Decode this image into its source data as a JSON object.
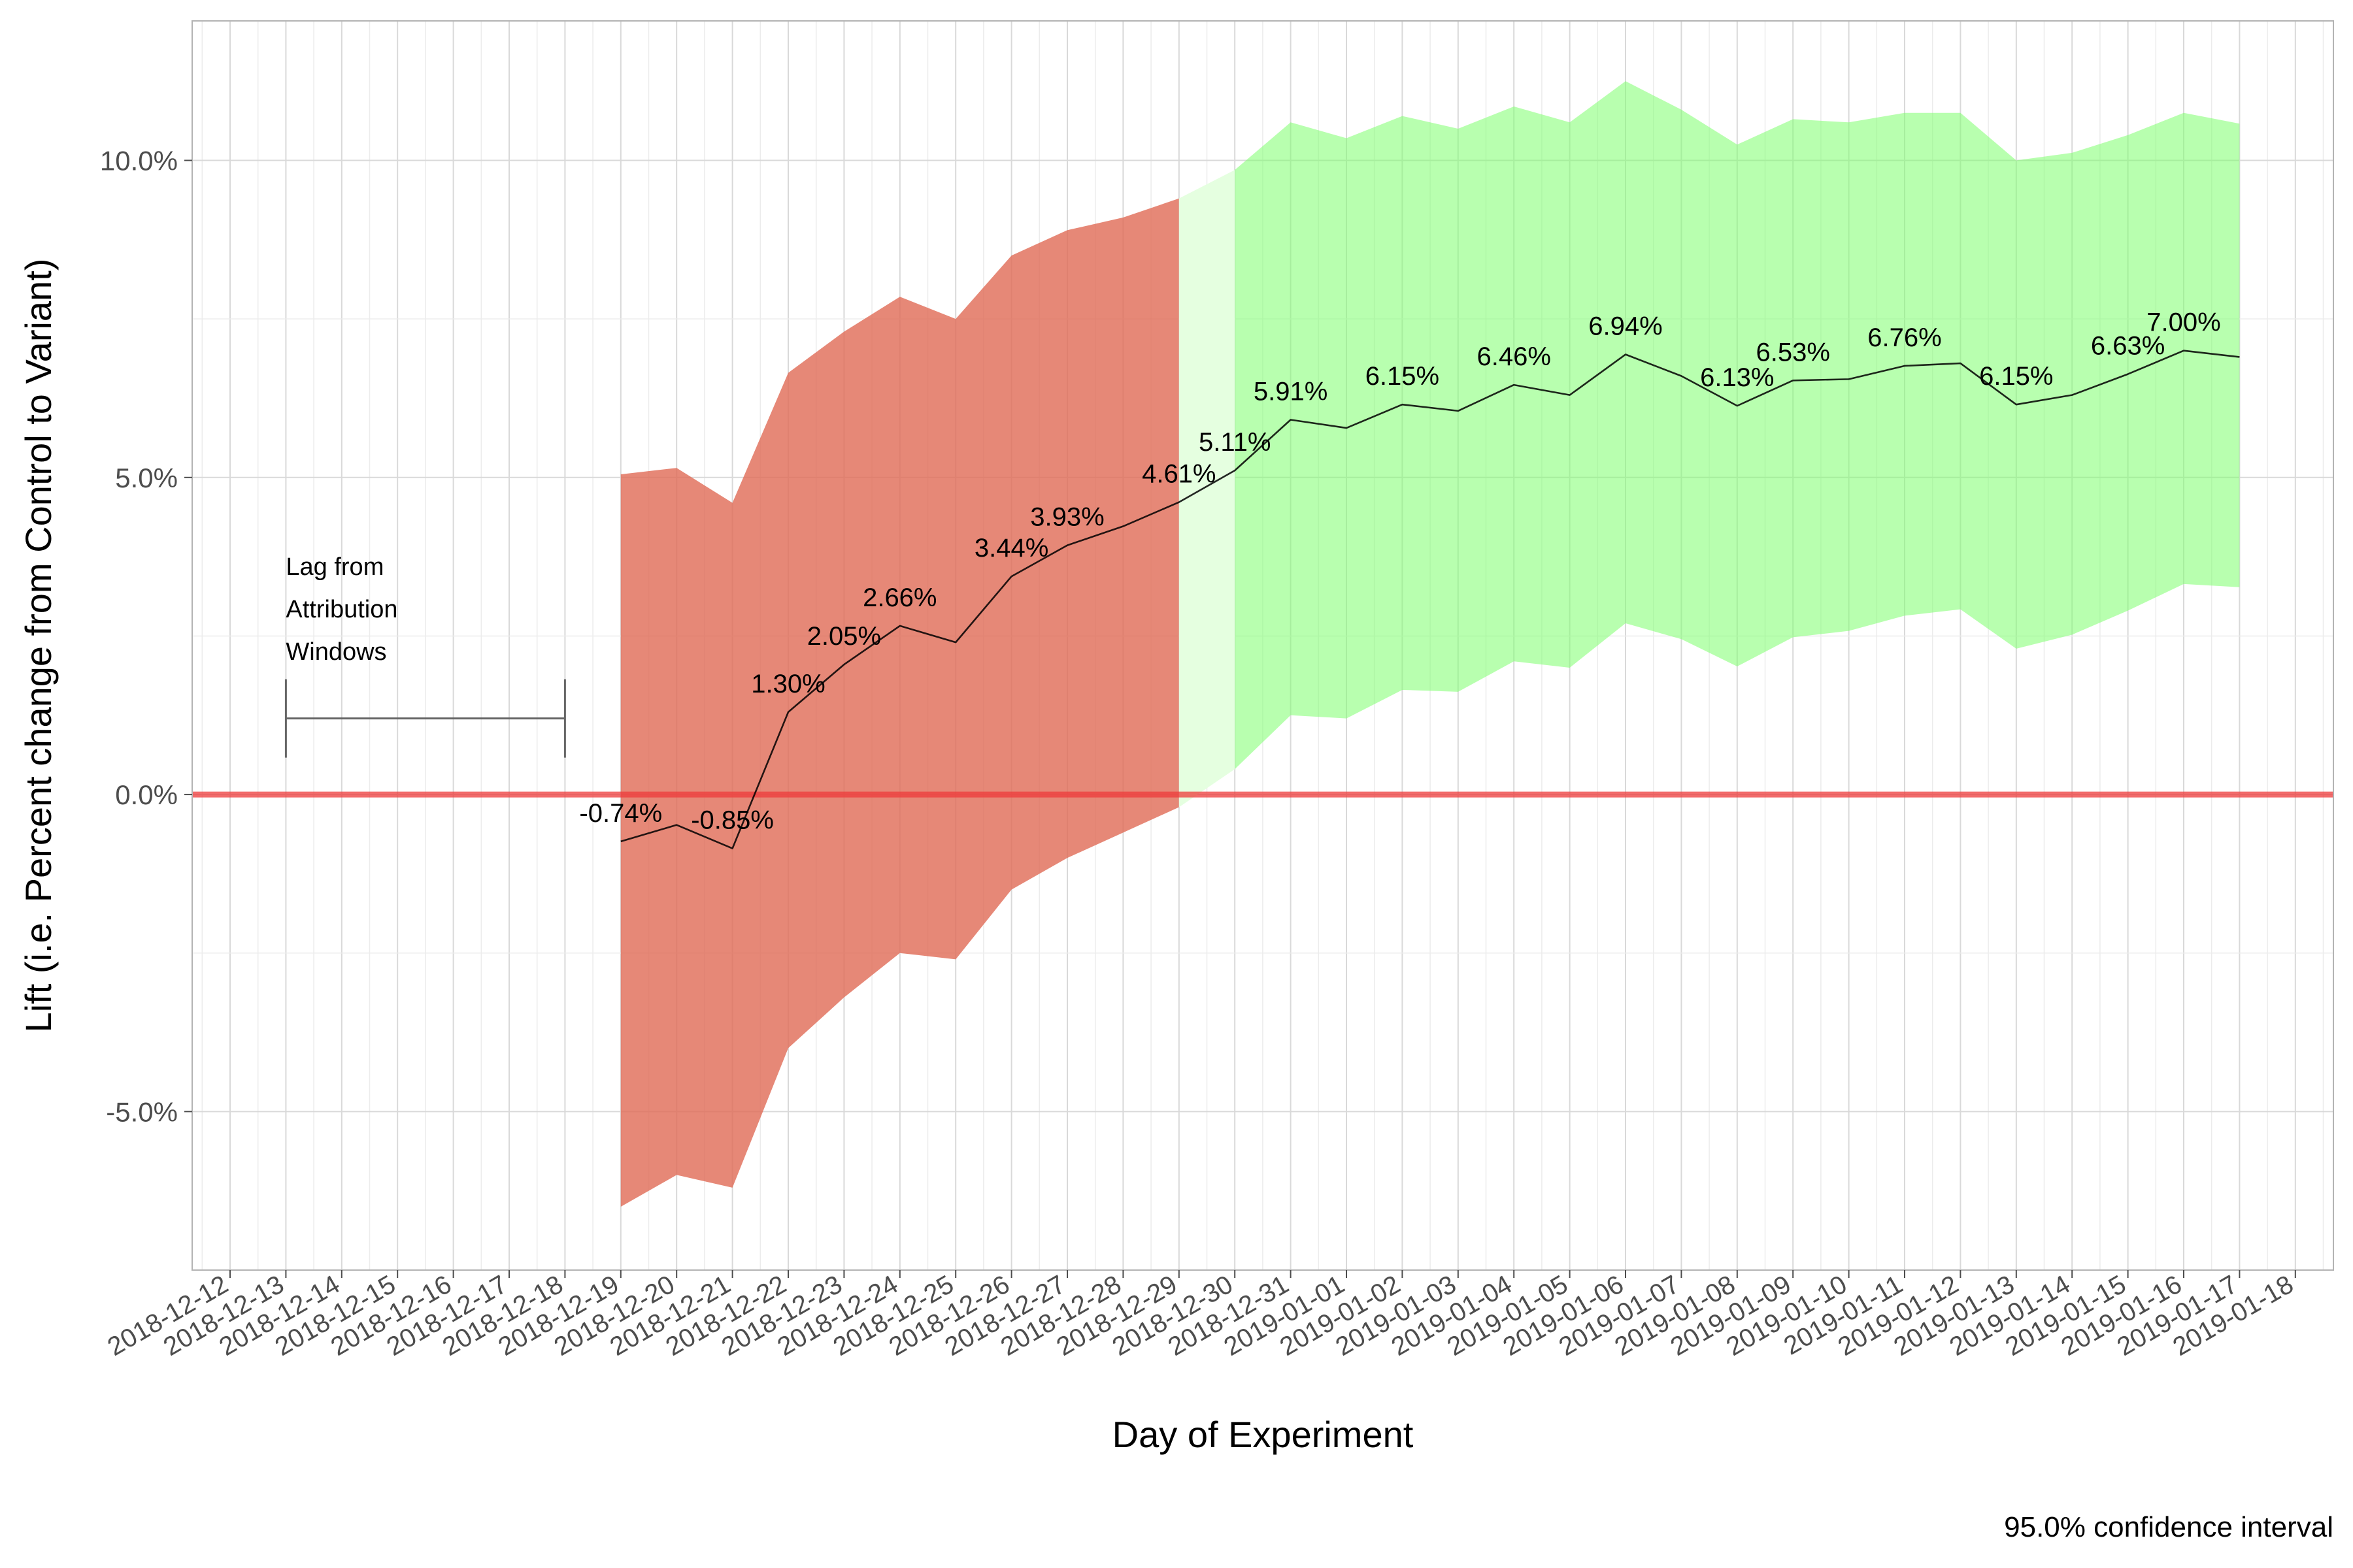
{
  "chart_data": {
    "type": "line",
    "xlabel": "Day of Experiment",
    "ylabel": "Lift (i.e. Percent change from Control to Variant)",
    "caption": "95.0% confidence interval",
    "ylim": [
      -7.5,
      12.2
    ],
    "y_ticks": [
      -5.0,
      0.0,
      5.0,
      10.0
    ],
    "y_tick_labels": [
      "-5.0%",
      "0.0%",
      "5.0%",
      "10.0%"
    ],
    "x_tick_labels": [
      "2018-12-12",
      "2018-12-13",
      "2018-12-14",
      "2018-12-15",
      "2018-12-16",
      "2018-12-17",
      "2018-12-18",
      "2018-12-19",
      "2018-12-20",
      "2018-12-21",
      "2018-12-22",
      "2018-12-23",
      "2018-12-24",
      "2018-12-25",
      "2018-12-26",
      "2018-12-27",
      "2018-12-28",
      "2018-12-29",
      "2018-12-30",
      "2018-12-31",
      "2019-01-01",
      "2019-01-02",
      "2019-01-03",
      "2019-01-04",
      "2019-01-05",
      "2019-01-06",
      "2019-01-07",
      "2019-01-08",
      "2019-01-09",
      "2019-01-10",
      "2019-01-11",
      "2019-01-12",
      "2019-01-13",
      "2019-01-14",
      "2019-01-15",
      "2019-01-16",
      "2019-01-17",
      "2019-01-18"
    ],
    "reference_line": {
      "y": 0.0,
      "color": "#ee3b3b"
    },
    "lag_annotation": {
      "text": [
        "Lag from",
        "Attribution",
        "Windows"
      ],
      "x_start": "2018-12-13",
      "x_end": "2018-12-18",
      "y": 1.2
    },
    "colors": {
      "line": "#000000",
      "ci_not_significant": "#e06a55",
      "ci_significant": "#7dff6e",
      "ci_transition": "#e5ffe0",
      "gridline": "#d9d9d9"
    },
    "series": [
      {
        "x": [
          "2018-12-19",
          "2018-12-20",
          "2018-12-21",
          "2018-12-22",
          "2018-12-23",
          "2018-12-24",
          "2018-12-25",
          "2018-12-26",
          "2018-12-27",
          "2018-12-28",
          "2018-12-29",
          "2018-12-30",
          "2018-12-31",
          "2019-01-01",
          "2019-01-02",
          "2019-01-03",
          "2019-01-04",
          "2019-01-05",
          "2019-01-06",
          "2019-01-07",
          "2019-01-08",
          "2019-01-09",
          "2019-01-10",
          "2019-01-11",
          "2019-01-12",
          "2019-01-13",
          "2019-01-14",
          "2019-01-15",
          "2019-01-16",
          "2019-01-17"
        ],
        "y": [
          -0.74,
          -0.48,
          -0.85,
          1.3,
          2.05,
          2.66,
          2.4,
          3.44,
          3.93,
          4.23,
          4.61,
          5.11,
          5.91,
          5.78,
          6.15,
          6.05,
          6.46,
          6.3,
          6.94,
          6.6,
          6.13,
          6.53,
          6.55,
          6.76,
          6.8,
          6.15,
          6.3,
          6.63,
          7.0,
          6.9
        ],
        "ci_lower": [
          -6.5,
          -6.0,
          -6.2,
          -4.0,
          -3.2,
          -2.5,
          -2.6,
          -1.5,
          -1.0,
          -0.6,
          -0.2,
          0.4,
          1.25,
          1.2,
          1.65,
          1.62,
          2.1,
          2.0,
          2.7,
          2.45,
          2.02,
          2.48,
          2.58,
          2.82,
          2.92,
          2.3,
          2.52,
          2.9,
          3.32,
          3.27
        ],
        "ci_upper": [
          5.05,
          5.15,
          4.6,
          6.65,
          7.3,
          7.85,
          7.5,
          8.5,
          8.9,
          9.1,
          9.4,
          9.85,
          10.6,
          10.35,
          10.7,
          10.5,
          10.85,
          10.6,
          11.25,
          10.8,
          10.25,
          10.65,
          10.6,
          10.75,
          10.75,
          10.0,
          10.12,
          10.4,
          10.75,
          10.58
        ],
        "significant": [
          false,
          false,
          false,
          false,
          false,
          false,
          false,
          false,
          false,
          false,
          false,
          true,
          true,
          true,
          true,
          true,
          true,
          true,
          true,
          true,
          true,
          true,
          true,
          true,
          true,
          true,
          true,
          true,
          true,
          true
        ]
      }
    ],
    "data_labels": [
      {
        "x": "2018-12-19",
        "text": "-0.74%"
      },
      {
        "x": "2018-12-21",
        "text": "-0.85%"
      },
      {
        "x": "2018-12-22",
        "text": "1.30%"
      },
      {
        "x": "2018-12-23",
        "text": "2.05%"
      },
      {
        "x": "2018-12-24",
        "text": "2.66%"
      },
      {
        "x": "2018-12-26",
        "text": "3.44%"
      },
      {
        "x": "2018-12-27",
        "text": "3.93%"
      },
      {
        "x": "2018-12-29",
        "text": "4.61%"
      },
      {
        "x": "2018-12-30",
        "text": "5.11%"
      },
      {
        "x": "2018-12-31",
        "text": "5.91%"
      },
      {
        "x": "2019-01-02",
        "text": "6.15%"
      },
      {
        "x": "2019-01-04",
        "text": "6.46%"
      },
      {
        "x": "2019-01-06",
        "text": "6.94%"
      },
      {
        "x": "2019-01-08",
        "text": "6.13%"
      },
      {
        "x": "2019-01-09",
        "text": "6.53%"
      },
      {
        "x": "2019-01-11",
        "text": "6.76%"
      },
      {
        "x": "2019-01-13",
        "text": "6.15%"
      },
      {
        "x": "2019-01-15",
        "text": "6.63%"
      },
      {
        "x": "2019-01-16",
        "text": "7.00%"
      }
    ]
  }
}
